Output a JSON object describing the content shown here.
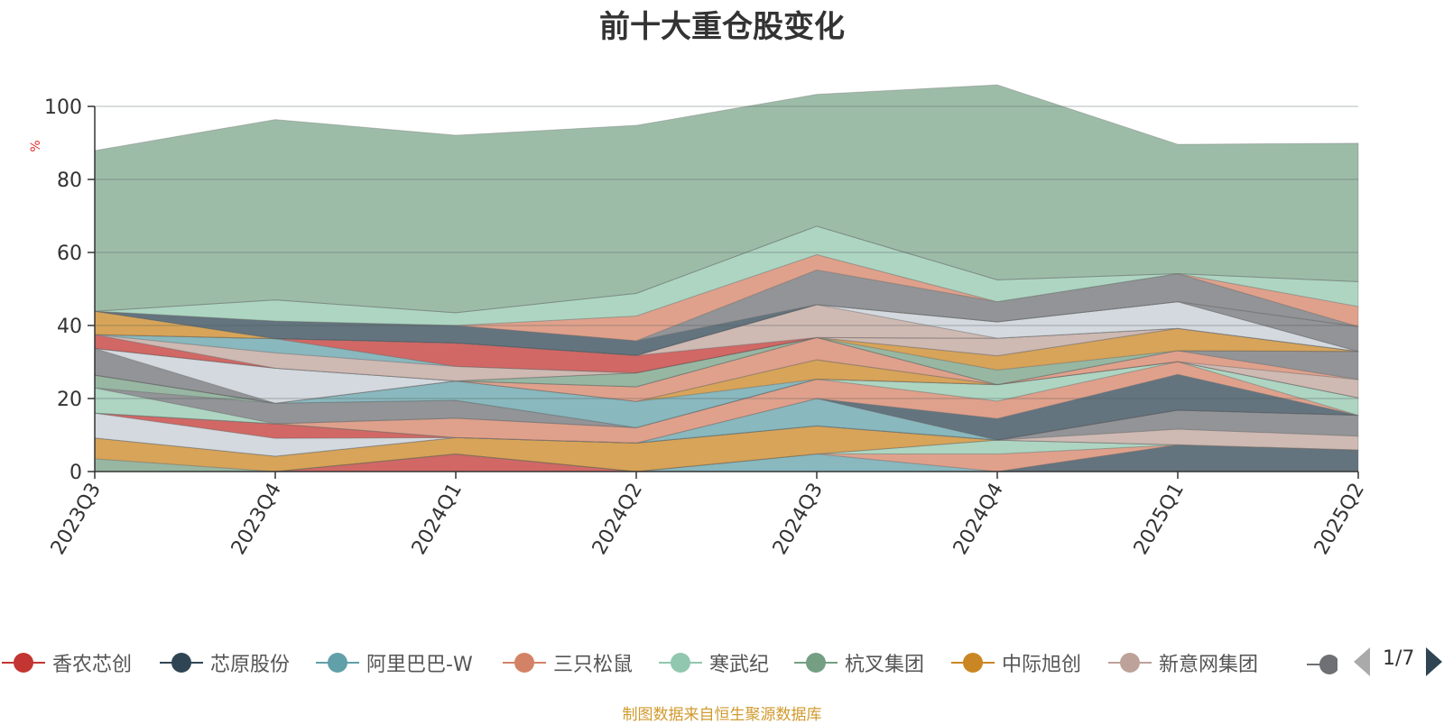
{
  "chart_data": {
    "type": "area",
    "title": "前十大重仓股变化",
    "ylabel": "%",
    "ylim": [
      0,
      100
    ],
    "y_ticks": [
      "0",
      "20",
      "40",
      "60",
      "80",
      "100"
    ],
    "categories": [
      "2023Q3",
      "2023Q4",
      "2024Q1",
      "2024Q2",
      "2024Q3",
      "2024Q4",
      "2025Q1",
      "2025Q2"
    ],
    "grid": true,
    "series": [
      {
        "name": "香农芯创",
        "color": "#c23531",
        "values": [
          0,
          0,
          4.8,
          0,
          0,
          0,
          0,
          0
        ]
      },
      {
        "name": "芯原股份",
        "color": "#2f4554",
        "values": [
          0,
          0,
          0,
          0,
          0,
          0,
          7.3,
          5.9
        ]
      },
      {
        "name": "阿里巴巴-W",
        "color": "#61a0a8",
        "values": [
          0,
          0,
          0,
          0,
          4.8,
          0,
          0,
          0
        ]
      },
      {
        "name": "三只松鼠",
        "color": "#d48265",
        "values": [
          0,
          0,
          0,
          0,
          0,
          4.8,
          0,
          0
        ]
      },
      {
        "name": "寒武纪",
        "color": "#91c7ae",
        "values": [
          0,
          0,
          0,
          0,
          0,
          3.8,
          0,
          0
        ]
      },
      {
        "name": "杭叉集团",
        "color": "#749f83",
        "values": [
          3.5,
          0,
          0,
          0,
          0,
          0,
          0,
          0
        ]
      },
      {
        "name": "中际旭创",
        "color": "#ca8622",
        "values": [
          5.7,
          4.2,
          4.5,
          7.8,
          7.7,
          0,
          0,
          0
        ]
      },
      {
        "name": "新意网集团",
        "color": "#bda29a",
        "values": [
          0,
          0,
          0,
          0,
          0,
          0,
          4.3,
          3.8
        ]
      },
      {
        "name": "",
        "color": "#6e7074",
        "values": [
          0,
          0,
          0,
          0,
          0,
          0,
          5.2,
          5.7
        ]
      },
      {
        "name": "",
        "color": "#c4ccd3",
        "values": [
          6.8,
          4.9,
          0,
          0,
          0,
          0,
          0,
          0
        ]
      },
      {
        "name": "",
        "color": "#c23531",
        "values": [
          0,
          4.0,
          0,
          0,
          0,
          0,
          0,
          0
        ]
      },
      {
        "name": "",
        "color": "#61a0a8",
        "values": [
          0,
          0,
          0,
          0,
          7.5,
          0,
          0,
          0
        ]
      },
      {
        "name": "",
        "color": "#2f4554",
        "values": [
          0,
          0,
          0,
          0,
          0,
          5.9,
          9.8,
          0
        ]
      },
      {
        "name": "",
        "color": "#d48265",
        "values": [
          0,
          0,
          5.3,
          4.2,
          5.3,
          4.8,
          3.5,
          0
        ]
      },
      {
        "name": "",
        "color": "#91c7ae",
        "values": [
          6.9,
          0,
          0,
          0,
          0,
          4.5,
          0,
          4.8
        ]
      },
      {
        "name": "",
        "color": "#6e7074",
        "values": [
          0,
          5.6,
          4.9,
          0,
          0,
          0,
          0,
          0
        ]
      },
      {
        "name": "",
        "color": "#749f83",
        "values": [
          3.5,
          0,
          0,
          0,
          0,
          0,
          0,
          0
        ]
      },
      {
        "name": "",
        "color": "#61a0a8",
        "values": [
          0,
          0,
          5.3,
          7.2,
          0,
          0,
          0,
          0
        ]
      },
      {
        "name": "",
        "color": "#ca8622",
        "values": [
          0,
          0,
          0,
          0,
          5.3,
          0,
          0,
          0
        ]
      },
      {
        "name": "",
        "color": "#bda29a",
        "values": [
          0,
          0,
          0,
          0,
          0,
          0,
          0,
          5.0
        ]
      },
      {
        "name": "",
        "color": "#d48265",
        "values": [
          0,
          0,
          0,
          4.0,
          6.1,
          0,
          3.0,
          0
        ]
      },
      {
        "name": "",
        "color": "#6e7074",
        "values": [
          7.3,
          0,
          0,
          0,
          0,
          0,
          0,
          7.7
        ]
      },
      {
        "name": "",
        "color": "#c4ccd3",
        "values": [
          0,
          9.6,
          0,
          0,
          0,
          0,
          0,
          0
        ]
      },
      {
        "name": "",
        "color": "#749f83",
        "values": [
          0,
          0,
          0,
          3.8,
          0,
          4.0,
          0,
          0
        ]
      },
      {
        "name": "",
        "color": "#ca8622",
        "values": [
          0,
          0,
          0,
          0,
          0,
          3.9,
          6.1,
          0
        ]
      },
      {
        "name": "",
        "color": "#c23531",
        "values": [
          3.8,
          0,
          0,
          0,
          0,
          0,
          0,
          0
        ]
      },
      {
        "name": "",
        "color": "#bda29a",
        "values": [
          0,
          4.2,
          4.0,
          0,
          0,
          4.8,
          0,
          0
        ]
      },
      {
        "name": "",
        "color": "#61a0a8",
        "values": [
          0,
          3.9,
          0,
          0,
          0,
          0,
          0,
          0
        ]
      },
      {
        "name": "",
        "color": "#c23531",
        "values": [
          0,
          0,
          6.4,
          4.8,
          0,
          0,
          0,
          0
        ]
      },
      {
        "name": "",
        "color": "#bda29a",
        "values": [
          0,
          0,
          0,
          0,
          9.0,
          0,
          0,
          0
        ]
      },
      {
        "name": "",
        "color": "#c4ccd3",
        "values": [
          0,
          0,
          0,
          0,
          0,
          4.5,
          7.3,
          0
        ]
      },
      {
        "name": "",
        "color": "#ca8622",
        "values": [
          6.4,
          0,
          0,
          0,
          0,
          0,
          0,
          0
        ]
      },
      {
        "name": "",
        "color": "#6e7074",
        "values": [
          0,
          0,
          0,
          0,
          0,
          0,
          0,
          6.8
        ]
      },
      {
        "name": "",
        "color": "#2f4554",
        "values": [
          0,
          4.8,
          4.8,
          4.0,
          0,
          0,
          0,
          0
        ]
      },
      {
        "name": "",
        "color": "#6e7074",
        "values": [
          0,
          0,
          0,
          0,
          9.5,
          5.5,
          7.7,
          0
        ]
      },
      {
        "name": "",
        "color": "#d48265",
        "values": [
          0,
          0,
          0,
          6.8,
          4.2,
          0,
          0,
          5.5
        ]
      },
      {
        "name": "",
        "color": "#91c7ae",
        "values": [
          0,
          5.8,
          3.5,
          6.2,
          7.8,
          6.0,
          0,
          6.8
        ]
      },
      {
        "name": "",
        "color": "#c23531",
        "values": [
          0,
          0,
          0,
          0,
          0,
          0,
          0,
          0
        ]
      },
      {
        "name": "",
        "color": "#749f83",
        "values": [
          44.0,
          49.4,
          48.6,
          46.0,
          36.1,
          53.4,
          35.4,
          37.9
        ]
      }
    ]
  },
  "legend": {
    "items": [
      {
        "label": "香农芯创",
        "color": "#c23531"
      },
      {
        "label": "芯原股份",
        "color": "#2f4554"
      },
      {
        "label": "阿里巴巴-W",
        "color": "#61a0a8"
      },
      {
        "label": "三只松鼠",
        "color": "#d48265"
      },
      {
        "label": "寒武纪",
        "color": "#91c7ae"
      },
      {
        "label": "杭叉集团",
        "color": "#749f83"
      },
      {
        "label": "中际旭创",
        "color": "#ca8622"
      },
      {
        "label": "新意网集团",
        "color": "#bda29a"
      }
    ],
    "overflow_color": "#6e7074",
    "page": "1/7"
  },
  "source_note": "制图数据来自恒生聚源数据库"
}
